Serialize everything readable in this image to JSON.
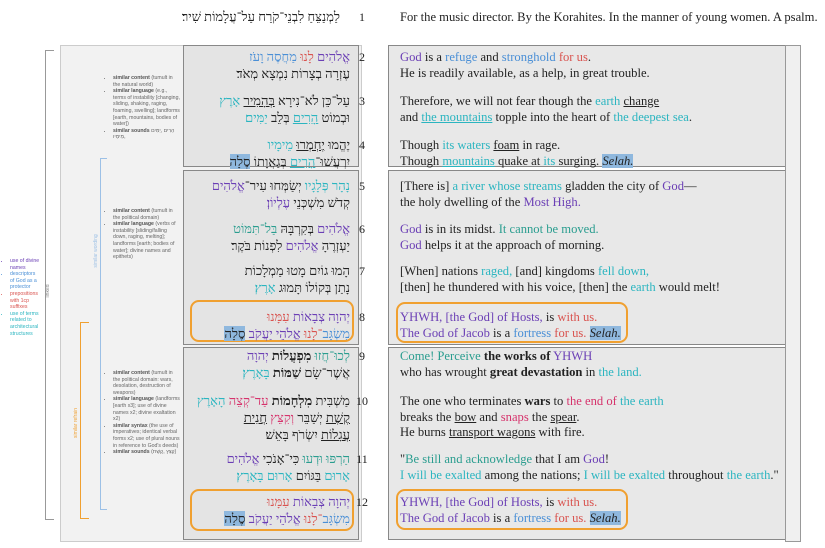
{
  "colors": {
    "divine": "#6b3fb5",
    "protector": "#4a8fd6",
    "suffix": "#d9534f",
    "landform": "#2bb5c0",
    "imperative": "#2a9d8f",
    "sound": "#d6336c",
    "refrain": "#f0a030",
    "selah": "#8fb8de"
  },
  "structure_labels": {
    "outer": "linked",
    "blue": "similar wording",
    "orange": "similar refrain"
  },
  "notes": {
    "left": [
      "use of divine names",
      "descriptors of God as a protector",
      "prepositions with 1cp suffixes",
      "use of terms related to architectural structures"
    ],
    "stanza1": [
      {
        "k": "similar content",
        "v": "(tumult in the natural world)"
      },
      {
        "k": "similar language",
        "v": "(e.g., terms of instability [changing, sliding, shaking, raging, foaming, swelling]; landforms [earth, mountains, bodies of water])"
      },
      {
        "k": "similar sounds",
        "v": "הָרִים ,יַמִּים ,מֵימָיו"
      }
    ],
    "stanza2": [
      {
        "k": "similar content",
        "v": "(tumult in the political domain)"
      },
      {
        "k": "similar language",
        "v": "(verbs of instability [sliding/falling down, raging, melting]; landforms [earth; bodies of water]; divine names and epithets)"
      }
    ],
    "stanza3": [
      {
        "k": "similar content",
        "v": "(tumult in the political domain: wars, desolation, destruction of weapons)"
      },
      {
        "k": "similar language",
        "v": "(landforms [earth x3]; use of divine names x2; divine exaltation x2)"
      },
      {
        "k": "similar syntax",
        "v": "(the use of imperatives; identical verbal forms x2; use of plural nouns in reference to God's deeds)"
      },
      {
        "k": "similar sounds",
        "v": "(קֵצֵּץ ,קֶשֶׁת)"
      }
    ]
  },
  "verses": [
    {
      "num": "1",
      "hebrew": [
        [
          {
            "t": "לַמְנַצֵּחַ לִבְנֵי־קֹרַח עַל־עֲלָמוֹת שִׁיר׃"
          }
        ]
      ],
      "english": [
        [
          {
            "t": "For the music director. By the Korahites. In the manner of young women. A psalm."
          }
        ]
      ]
    },
    {
      "num": "2",
      "hebrew": [
        [
          {
            "t": "אֱלֹהִים",
            "c": "divine"
          },
          {
            "t": " לָנוּ ",
            "c": "suffix"
          },
          {
            "t": "מַחֲסֶה וָעֹז",
            "c": "protector"
          }
        ],
        [
          {
            "t": "עֶזְרָה בְצָרוֹת נִמְצָא מְאֹד׃"
          }
        ]
      ],
      "english": [
        [
          {
            "t": "God",
            "c": "divine"
          },
          {
            "t": " is a "
          },
          {
            "t": "refuge",
            "c": "protector"
          },
          {
            "t": " and "
          },
          {
            "t": "stronghold",
            "c": "protector"
          },
          {
            "t": " for us",
            "c": "suffix"
          },
          {
            "t": "."
          }
        ],
        [
          {
            "t": "He is readily available, as a help, in great trouble."
          }
        ]
      ]
    },
    {
      "num": "3",
      "hebrew": [
        [
          {
            "t": "עַל־כֵּן לֹא־נִירָא "
          },
          {
            "t": "בְּהָמִיר",
            "u": 1
          },
          {
            "t": " אָרֶץ",
            "c": "landform"
          }
        ],
        [
          {
            "t": "וּבְמוֹט "
          },
          {
            "t": "הָרִים",
            "c": "landform",
            "u": 1
          },
          {
            "t": " בְּלֵב "
          },
          {
            "t": "יַמִּים׃",
            "c": "landform"
          }
        ]
      ],
      "english": [
        [
          {
            "t": "Therefore, we will not fear though the "
          },
          {
            "t": "earth",
            "c": "landform"
          },
          {
            "t": " "
          },
          {
            "t": "change",
            "u": 1
          }
        ],
        [
          {
            "t": "and "
          },
          {
            "t": "the mountains",
            "c": "landform",
            "u": 1
          },
          {
            "t": " topple into the heart of "
          },
          {
            "t": "the deepest sea",
            "c": "landform"
          },
          {
            "t": "."
          }
        ]
      ]
    },
    {
      "num": "4",
      "hebrew": [
        [
          {
            "t": "יֶהֱמוּ "
          },
          {
            "t": "יֶחְמְרוּ",
            "u": 1
          },
          {
            "t": " מֵימָיו",
            "c": "landform"
          }
        ],
        [
          {
            "t": "יִרְעֲשׁוּ־"
          },
          {
            "t": "הָרִים",
            "c": "landform",
            "u": 1
          },
          {
            "t": " בְּגַאֲוָתוֹ "
          },
          {
            "t": "סֶלָה",
            "hl": 1
          },
          {
            "t": "׃"
          }
        ]
      ],
      "english": [
        [
          {
            "t": "Though "
          },
          {
            "t": "its waters",
            "c": "landform"
          },
          {
            "t": " "
          },
          {
            "t": "foam",
            "u": 1
          },
          {
            "t": " in rage."
          }
        ],
        [
          {
            "t": "Though  "
          },
          {
            "t": "mountains",
            "c": "landform",
            "u": 1
          },
          {
            "t": " quake at "
          },
          {
            "t": "its",
            "c": "landform"
          },
          {
            "t": " surging. "
          },
          {
            "t": "Selah.",
            "hl": 1,
            "i": 1
          }
        ]
      ]
    },
    {
      "num": "5",
      "hebrew": [
        [
          {
            "t": "נָהָר פְּלָגָיו",
            "c": "landform"
          },
          {
            "t": " יְשַׂמְּחוּ עִיר־"
          },
          {
            "t": "אֱלֹהִים",
            "c": "divine"
          }
        ],
        [
          {
            "t": "קְדֹשׁ מִשְׁכְּנֵי "
          },
          {
            "t": "עֶלְיוֹן׃",
            "c": "divine"
          }
        ]
      ],
      "english": [
        [
          {
            "t": "[There is] "
          },
          {
            "t": "a river whose streams",
            "c": "landform"
          },
          {
            "t": " gladden the city of "
          },
          {
            "t": "God",
            "c": "divine"
          },
          {
            "t": "—"
          }
        ],
        [
          {
            "t": "the holy dwelling of the "
          },
          {
            "t": "Most High.",
            "c": "divine"
          }
        ]
      ]
    },
    {
      "num": "6",
      "hebrew": [
        [
          {
            "t": "אֱלֹהִים",
            "c": "divine"
          },
          {
            "t": " בְּקִרְבָּהּ "
          },
          {
            "t": "בַּל־תִּמּוֹט",
            "c": "imperative"
          }
        ],
        [
          {
            "t": "יַעְזְרֶהָ "
          },
          {
            "t": "אֱלֹהִים",
            "c": "divine"
          },
          {
            "t": " לִפְנוֹת בֹּקֶר׃"
          }
        ]
      ],
      "english": [
        [
          {
            "t": "God",
            "c": "divine"
          },
          {
            "t": " is in its midst. "
          },
          {
            "t": "It cannot be moved.",
            "c": "imperative"
          }
        ],
        [
          {
            "t": "God",
            "c": "divine"
          },
          {
            "t": " helps it at the approach of morning."
          }
        ]
      ]
    },
    {
      "num": "7",
      "hebrew": [
        [
          {
            "t": "הָמוּ גוֹיִם מָטוּ מַמְלָכוֹת"
          }
        ],
        [
          {
            "t": "נָתַן בְּקוֹלוֹ תָּמוּג "
          },
          {
            "t": "אָרֶץ׃",
            "c": "landform"
          }
        ]
      ],
      "english": [
        [
          {
            "t": "[When] nations "
          },
          {
            "t": "raged,",
            "c": "landform"
          },
          {
            "t": " [and] kingdoms "
          },
          {
            "t": "fell down,",
            "c": "landform"
          }
        ],
        [
          {
            "t": "[then] he thundered with his voice, [then] the "
          },
          {
            "t": "earth",
            "c": "landform"
          },
          {
            "t": " would melt!"
          }
        ]
      ]
    },
    {
      "num": "8",
      "hebrew": [
        [
          {
            "t": "יְהוָה צְבָאוֹת",
            "c": "divine"
          },
          {
            "t": " עִמָּנוּ",
            "c": "suffix"
          }
        ],
        [
          {
            "t": "מִשְׂגָּב",
            "c": "protector"
          },
          {
            "t": "־לָנוּ",
            "c": "suffix"
          },
          {
            "t": " אֱלֹהֵי יַעֲקֹב",
            "c": "divine"
          },
          {
            "t": " "
          },
          {
            "t": "סֶלָה",
            "hl": 1
          },
          {
            "t": "׃"
          }
        ]
      ],
      "english": [
        [
          {
            "t": "YHWH, [the God] of Hosts,",
            "c": "divine"
          },
          {
            "t": " is "
          },
          {
            "t": "with us.",
            "c": "suffix"
          }
        ],
        [
          {
            "t": "The God of Jacob",
            "c": "divine"
          },
          {
            "t": " is a "
          },
          {
            "t": "fortress",
            "c": "protector"
          },
          {
            "t": " for us.",
            "c": "suffix"
          },
          {
            "t": " "
          },
          {
            "t": "Selah.",
            "hl": 1,
            "i": 1
          }
        ]
      ]
    },
    {
      "num": "9",
      "hebrew": [
        [
          {
            "t": "לְכוּ־חֲזוּ",
            "c": "imperative"
          },
          {
            "t": " מִפְעֲלוֹת",
            "b": 1
          },
          {
            "t": " יְהוָה",
            "c": "divine"
          }
        ],
        [
          {
            "t": "אֲשֶׁר־שָׂם "
          },
          {
            "t": "שַׁמּוֹת",
            "b": 1
          },
          {
            "t": " בָּאָרֶץ׃",
            "c": "landform"
          }
        ]
      ],
      "english": [
        [
          {
            "t": "Come! Perceive",
            "c": "imperative"
          },
          {
            "t": " the works of",
            "b": 1
          },
          {
            "t": " YHWH",
            "c": "divine"
          }
        ],
        [
          {
            "t": "who has wrought "
          },
          {
            "t": "great devastation",
            "b": 1
          },
          {
            "t": " in "
          },
          {
            "t": "the land.",
            "c": "landform"
          }
        ]
      ]
    },
    {
      "num": "10",
      "hebrew": [
        [
          {
            "t": "מַשְׁבִּית "
          },
          {
            "t": "מִלְחָמוֹת",
            "b": 1
          },
          {
            "t": " עַד־קְצֵה",
            "c": "sound"
          },
          {
            "t": " הָאָרֶץ",
            "c": "landform"
          }
        ],
        [
          {
            "t": "קֶשֶׁת",
            "u": 1
          },
          {
            "t": " יְשַׁבֵּר "
          },
          {
            "t": "וְקִצֵּץ",
            "c": "sound"
          },
          {
            "t": " "
          },
          {
            "t": "חֲנִית",
            "u": 1
          }
        ],
        [
          {
            "t": "עֲגָלוֹת",
            "u": 1
          },
          {
            "t": " יִשְׂרֹף בָּאֵשׁ׃"
          }
        ]
      ],
      "english": [
        [
          {
            "t": "The one who terminates "
          },
          {
            "t": "wars",
            "b": 1
          },
          {
            "t": " to "
          },
          {
            "t": "the end of",
            "c": "sound"
          },
          {
            "t": " the earth",
            "c": "landform"
          }
        ],
        [
          {
            "t": "breaks the "
          },
          {
            "t": "bow",
            "u": 1
          },
          {
            "t": " and "
          },
          {
            "t": "snaps",
            "c": "sound"
          },
          {
            "t": " the "
          },
          {
            "t": "spear",
            "u": 1
          },
          {
            "t": "."
          }
        ],
        [
          {
            "t": "He burns "
          },
          {
            "t": "transport wagons",
            "u": 1
          },
          {
            "t": " with fire."
          }
        ]
      ]
    },
    {
      "num": "11",
      "hebrew": [
        [
          {
            "t": "הַרְפּוּ וּדְעוּ",
            "c": "imperative"
          },
          {
            "t": " כִּי־אָנֹכִי "
          },
          {
            "t": "אֱלֹהִים",
            "c": "divine"
          }
        ],
        [
          {
            "t": "אָרוּם",
            "c": "landform"
          },
          {
            "t": " בַּגּוֹיִם "
          },
          {
            "t": "אָרוּם",
            "c": "landform"
          },
          {
            "t": " בָּאָרֶץ׃",
            "c": "landform"
          }
        ]
      ],
      "english": [
        [
          {
            "t": "\""
          },
          {
            "t": "Be still and acknowledge",
            "c": "imperative"
          },
          {
            "t": " that I am "
          },
          {
            "t": "God",
            "c": "divine"
          },
          {
            "t": "!"
          }
        ],
        [
          {
            "t": "I will be exalted",
            "c": "landform"
          },
          {
            "t": " among the nations; "
          },
          {
            "t": "I will be exalted",
            "c": "landform"
          },
          {
            "t": " throughout "
          },
          {
            "t": "the earth",
            "c": "landform"
          },
          {
            "t": ".\""
          }
        ]
      ]
    },
    {
      "num": "12",
      "hebrew": [
        [
          {
            "t": "יְהוָה צְבָאוֹת",
            "c": "divine"
          },
          {
            "t": " עִמָּנוּ",
            "c": "suffix"
          }
        ],
        [
          {
            "t": "מִשְׂגָּב",
            "c": "protector"
          },
          {
            "t": "־לָנוּ",
            "c": "suffix"
          },
          {
            "t": " אֱלֹהֵי יַעֲקֹב",
            "c": "divine"
          },
          {
            "t": " "
          },
          {
            "t": "סֶלָה",
            "hl": 1
          },
          {
            "t": "׃"
          }
        ]
      ],
      "english": [
        [
          {
            "t": "YHWH, [the God] of Hosts,",
            "c": "divine"
          },
          {
            "t": " is "
          },
          {
            "t": "with us.",
            "c": "suffix"
          }
        ],
        [
          {
            "t": "The God of Jacob",
            "c": "divine"
          },
          {
            "t": " is a "
          },
          {
            "t": "fortress",
            "c": "protector"
          },
          {
            "t": " for us.",
            "c": "suffix"
          },
          {
            "t": " "
          },
          {
            "t": "Selah.",
            "hl": 1,
            "i": 1
          }
        ]
      ]
    }
  ]
}
